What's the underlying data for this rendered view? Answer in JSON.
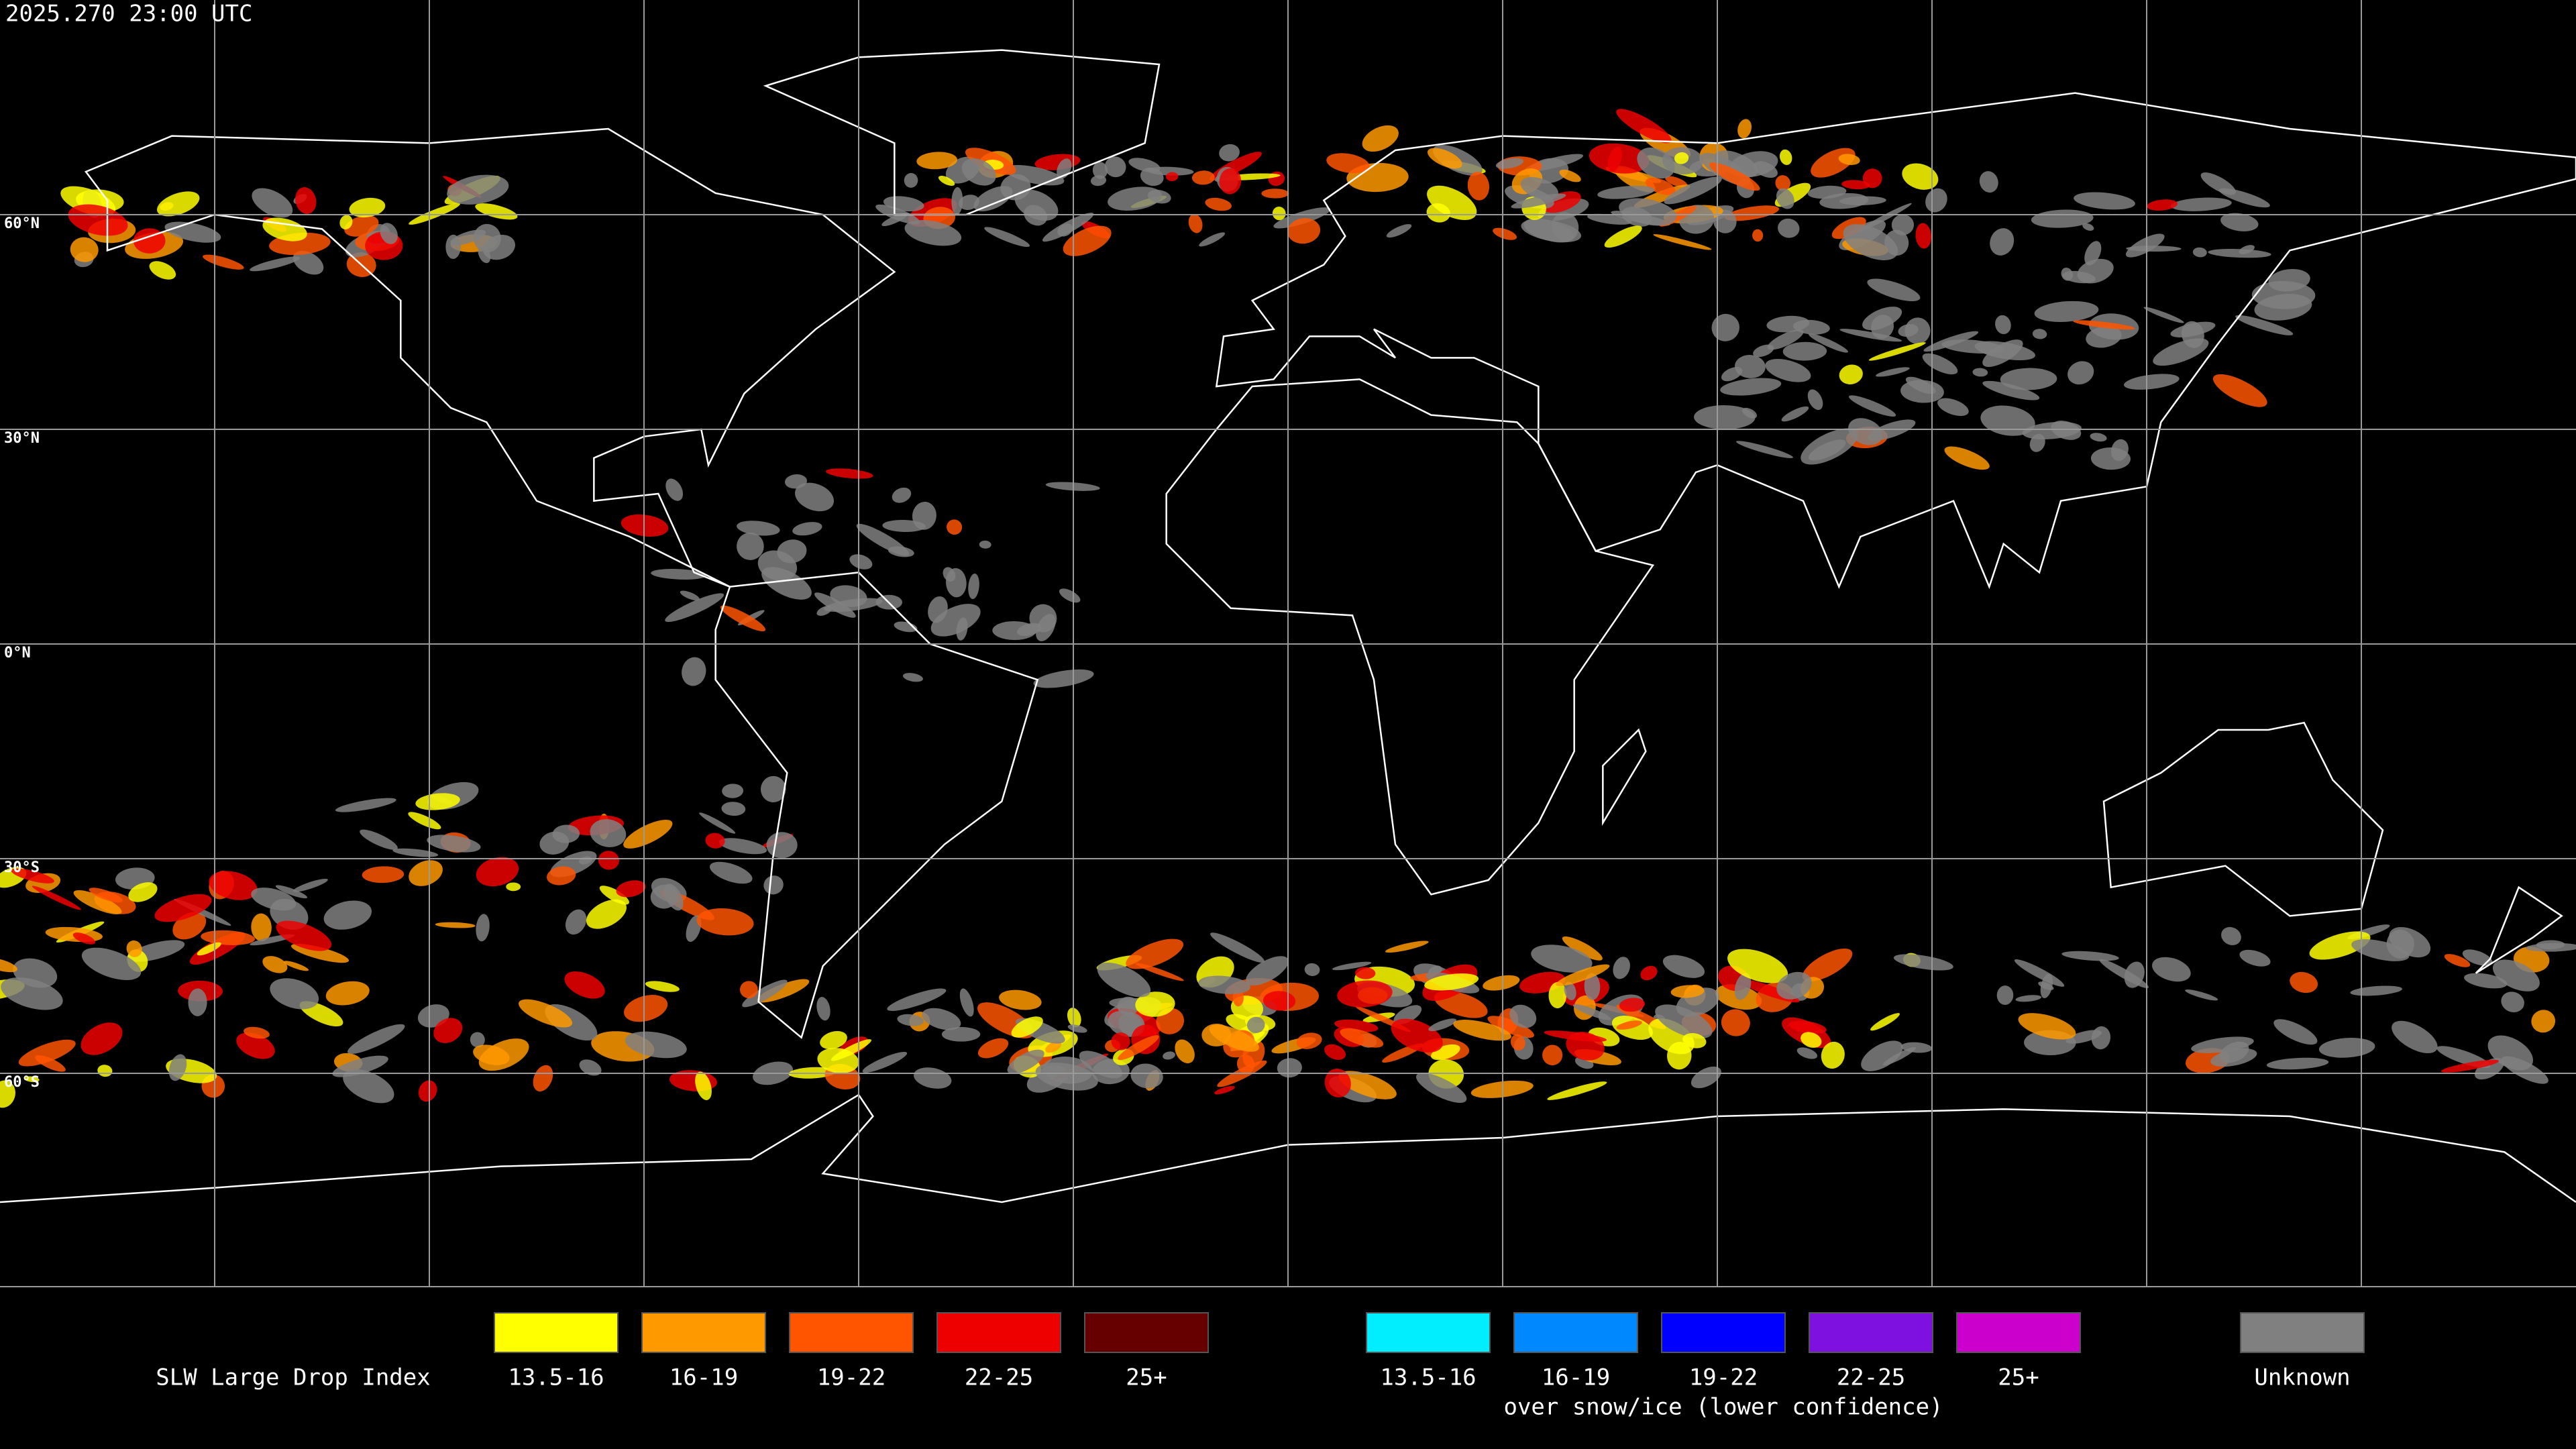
{
  "header": {
    "timestamp": "2025.270 23:00 UTC"
  },
  "map": {
    "lat_labels": [
      "60°N",
      "30°N",
      "0°N",
      "30°S",
      "60°S"
    ]
  },
  "legend": {
    "title": "SLW Large Drop Index",
    "groups": [
      {
        "items": [
          {
            "label": "13.5-16",
            "color": "#ffff00"
          },
          {
            "label": "16-19",
            "color": "#ff9900"
          },
          {
            "label": "19-22",
            "color": "#ff5500"
          },
          {
            "label": "22-25",
            "color": "#ee0000"
          },
          {
            "label": "25+",
            "color": "#660000"
          }
        ]
      },
      {
        "items": [
          {
            "label": "13.5-16",
            "color": "#00eeff"
          },
          {
            "label": "16-19",
            "color": "#0088ff"
          },
          {
            "label": "19-22",
            "color": "#0000ff"
          },
          {
            "label": "22-25",
            "color": "#7f11e0"
          },
          {
            "label": "25+",
            "color": "#cc00cc"
          }
        ],
        "caption": "over snow/ice (lower confidence)"
      }
    ],
    "unknown": {
      "label": "Unknown",
      "color": "#808080"
    }
  }
}
